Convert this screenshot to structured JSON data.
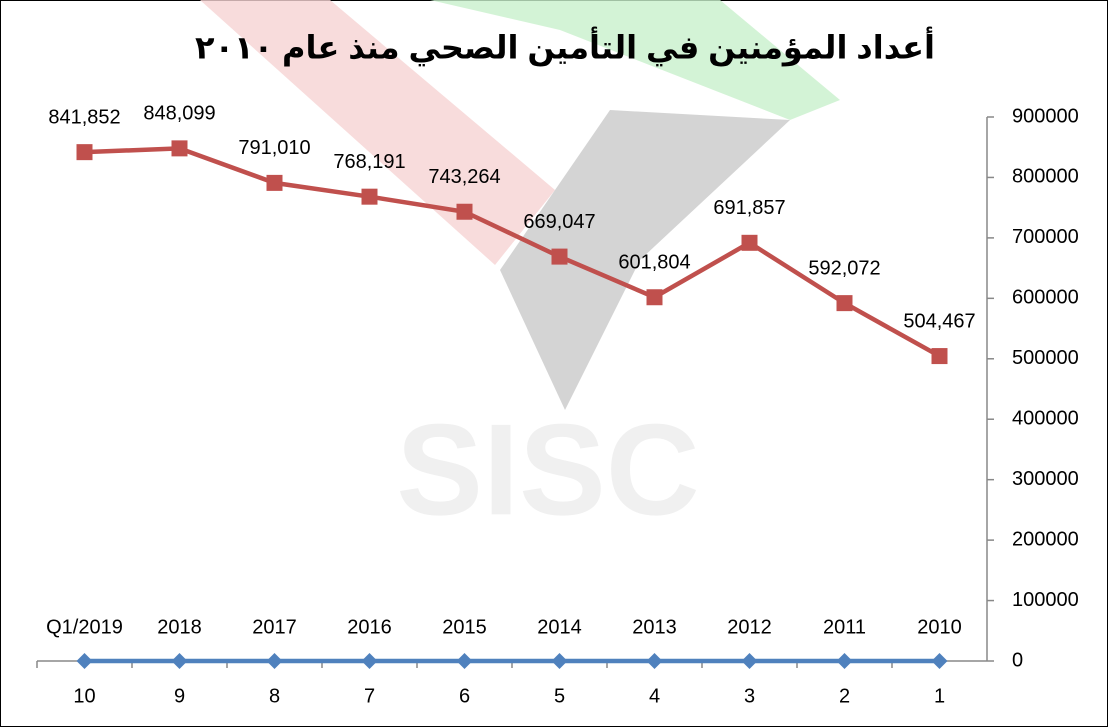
{
  "chart_data": {
    "type": "line",
    "title": "أعداد المؤمنين في التأمين الصحي منذ عام ٢٠١٠",
    "watermark": "SISC",
    "categories": [
      10,
      9,
      8,
      7,
      6,
      5,
      4,
      3,
      2,
      1
    ],
    "series": [
      {
        "color": "#c0504d",
        "marker": "square",
        "values": [
          841852,
          848099,
          791010,
          768191,
          743264,
          669047,
          601804,
          691857,
          592072,
          504467
        ],
        "value_labels": [
          "841,852",
          "848,099",
          "791,010",
          "768,191",
          "743,264",
          "669,047",
          "601,804",
          "691,857",
          "592,072",
          "504,467"
        ]
      },
      {
        "color": "#4f81bd",
        "marker": "diamond",
        "values": [
          0,
          0,
          0,
          0,
          0,
          0,
          0,
          0,
          0,
          0
        ],
        "point_labels": [
          "Q1/2019",
          "2018",
          "2017",
          "2016",
          "2015",
          "2014",
          "2013",
          "2012",
          "2011",
          "2010"
        ]
      }
    ],
    "ylim": [
      0,
      900000
    ],
    "yticks": [
      0,
      100000,
      200000,
      300000,
      400000,
      500000,
      600000,
      700000,
      800000,
      900000
    ],
    "y_axis_side": "right",
    "grid": false
  }
}
